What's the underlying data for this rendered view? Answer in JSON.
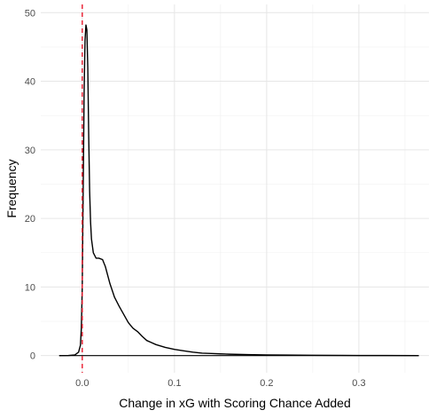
{
  "chart_data": {
    "type": "line",
    "title": "",
    "xlabel": "Change in xG with Scoring Chance Added",
    "ylabel": "Frequency",
    "xlim": [
      -0.045,
      0.376
    ],
    "ylim": [
      -2.5,
      51.2
    ],
    "x_ticks": [
      0.0,
      0.1,
      0.2,
      0.3
    ],
    "x_tick_labels": [
      "0.0",
      "0.1",
      "0.2",
      "0.3"
    ],
    "y_ticks": [
      0,
      10,
      20,
      30,
      40,
      50
    ],
    "y_tick_labels": [
      "0",
      "10",
      "20",
      "30",
      "40",
      "50"
    ],
    "grid": true,
    "legend": "none",
    "reference_line": {
      "x": 0.0,
      "color": "#e8192c",
      "style": "dashed"
    },
    "series": [
      {
        "color": "#000000",
        "x": [
          -0.025,
          -0.015,
          -0.008,
          -0.004,
          -0.002,
          -0.001,
          0.0,
          0.001,
          0.002,
          0.003,
          0.004,
          0.005,
          0.006,
          0.007,
          0.008,
          0.009,
          0.01,
          0.012,
          0.015,
          0.018,
          0.022,
          0.025,
          0.028,
          0.03,
          0.035,
          0.04,
          0.045,
          0.05,
          0.055,
          0.06,
          0.065,
          0.07,
          0.075,
          0.08,
          0.09,
          0.1,
          0.11,
          0.12,
          0.13,
          0.14,
          0.15,
          0.16,
          0.18,
          0.2,
          0.22,
          0.25,
          0.28,
          0.3,
          0.33,
          0.365
        ],
        "y": [
          0.0,
          0.02,
          0.1,
          0.5,
          1.5,
          4.0,
          10.0,
          24.0,
          38.0,
          46.0,
          48.2,
          47.5,
          42.0,
          32.0,
          24.0,
          19.5,
          17.0,
          15.0,
          14.2,
          14.2,
          14.0,
          13.0,
          11.5,
          10.5,
          8.5,
          7.2,
          6.0,
          4.8,
          4.0,
          3.5,
          2.8,
          2.2,
          1.9,
          1.6,
          1.2,
          0.9,
          0.7,
          0.5,
          0.35,
          0.3,
          0.25,
          0.2,
          0.15,
          0.1,
          0.08,
          0.05,
          0.03,
          0.02,
          0.01,
          0.0
        ]
      }
    ]
  }
}
